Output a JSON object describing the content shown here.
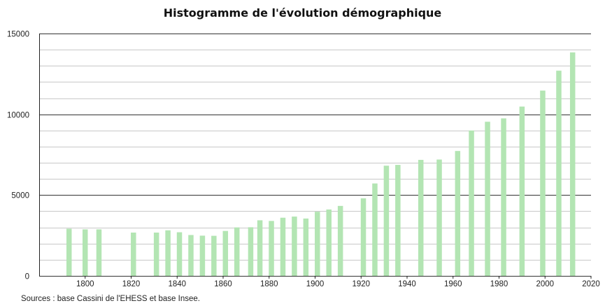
{
  "title": "Histogramme de l'évolution démographique",
  "source": "Sources : base Cassini de l'EHESS et base Insee.",
  "colors": {
    "bar": "#b3e5b3",
    "major_grid": "#333333",
    "minor_grid": "#c8c8c8",
    "axis": "#222222"
  },
  "chart_data": {
    "type": "bar",
    "title": "Histogramme de l'évolution démographique",
    "xlabel": "",
    "ylabel": "",
    "xlim": [
      1780,
      2020
    ],
    "ylim": [
      0,
      15000
    ],
    "x_ticks": [
      1800,
      1820,
      1840,
      1860,
      1880,
      1900,
      1920,
      1940,
      1960,
      1980,
      2000,
      2020
    ],
    "y_ticks": [
      0,
      5000,
      10000,
      15000
    ],
    "grid": true,
    "legend": "none",
    "x": [
      1793,
      1800,
      1806,
      1821,
      1831,
      1836,
      1841,
      1846,
      1851,
      1856,
      1861,
      1866,
      1872,
      1876,
      1881,
      1886,
      1891,
      1896,
      1901,
      1906,
      1911,
      1921,
      1926,
      1931,
      1936,
      1946,
      1954,
      1962,
      1968,
      1975,
      1982,
      1990,
      1999,
      2006,
      2012
    ],
    "values": [
      2920,
      2880,
      2880,
      2680,
      2680,
      2820,
      2700,
      2530,
      2490,
      2480,
      2780,
      3000,
      3010,
      3440,
      3400,
      3600,
      3670,
      3550,
      3970,
      4110,
      4330,
      4800,
      5720,
      6820,
      6870,
      7180,
      7200,
      7730,
      9000,
      9540,
      9750,
      10480,
      11470,
      12700,
      13830
    ]
  }
}
